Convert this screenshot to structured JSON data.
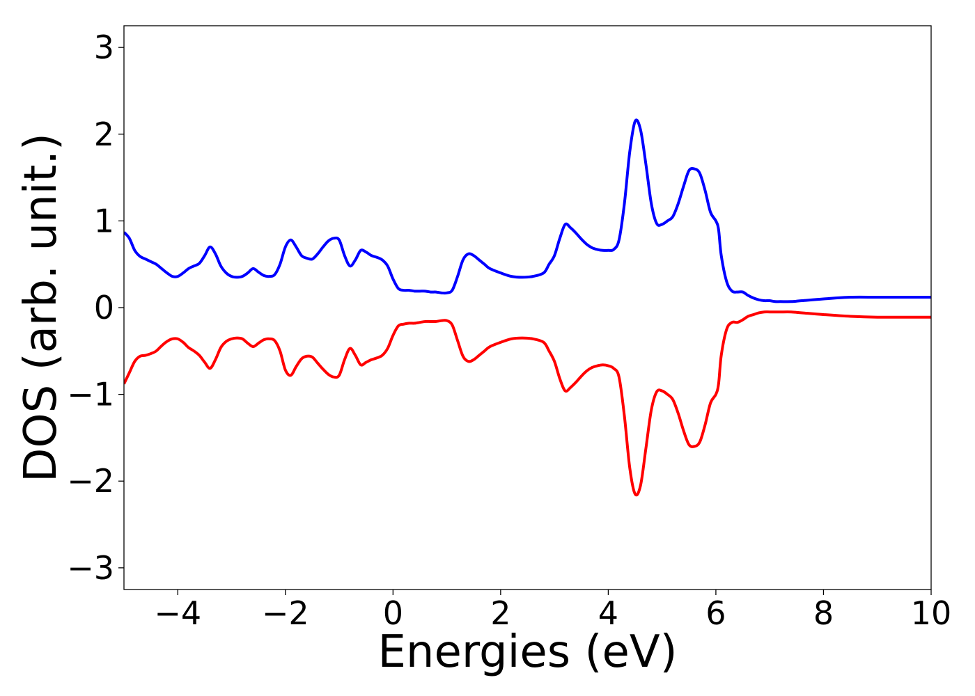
{
  "chart_data": {
    "type": "line",
    "title": "",
    "xlabel": "Energies (eV)",
    "ylabel": "DOS (arb. unit.)",
    "xlim": [
      -5,
      10
    ],
    "ylim": [
      -3.25,
      3.25
    ],
    "xticks": [
      -4,
      -2,
      0,
      2,
      4,
      6,
      8,
      10
    ],
    "yticks": [
      -3,
      -2,
      -1,
      0,
      1,
      2,
      3
    ],
    "xtick_labels": [
      "−4",
      "−2",
      "0",
      "2",
      "4",
      "6",
      "8",
      "10"
    ],
    "ytick_labels": [
      "−3",
      "−2",
      "−1",
      "0",
      "1",
      "2",
      "3"
    ],
    "grid": false,
    "legend": null,
    "series": [
      {
        "color": "#0000ff",
        "x": [
          -5.0,
          -4.9,
          -4.8,
          -4.7,
          -4.6,
          -4.5,
          -4.4,
          -4.3,
          -4.2,
          -4.1,
          -4.0,
          -3.9,
          -3.8,
          -3.7,
          -3.6,
          -3.5,
          -3.4,
          -3.3,
          -3.2,
          -3.1,
          -3.0,
          -2.9,
          -2.8,
          -2.7,
          -2.6,
          -2.5,
          -2.4,
          -2.3,
          -2.2,
          -2.1,
          -2.0,
          -1.9,
          -1.8,
          -1.7,
          -1.6,
          -1.5,
          -1.4,
          -1.3,
          -1.2,
          -1.1,
          -1.0,
          -0.9,
          -0.8,
          -0.7,
          -0.6,
          -0.5,
          -0.4,
          -0.3,
          -0.2,
          -0.1,
          0.0,
          0.1,
          0.2,
          0.3,
          0.4,
          0.5,
          0.6,
          0.7,
          0.8,
          0.9,
          1.0,
          1.1,
          1.2,
          1.3,
          1.4,
          1.5,
          1.6,
          1.7,
          1.8,
          2.0,
          2.2,
          2.4,
          2.6,
          2.8,
          2.9,
          3.0,
          3.1,
          3.2,
          3.3,
          3.4,
          3.5,
          3.6,
          3.7,
          3.8,
          3.9,
          4.0,
          4.1,
          4.2,
          4.3,
          4.4,
          4.5,
          4.6,
          4.7,
          4.8,
          4.9,
          5.0,
          5.1,
          5.2,
          5.3,
          5.4,
          5.5,
          5.6,
          5.7,
          5.8,
          5.9,
          6.0,
          6.05,
          6.1,
          6.2,
          6.3,
          6.4,
          6.5,
          6.6,
          6.7,
          6.8,
          6.9,
          7.0,
          7.1,
          7.2,
          7.4,
          7.6,
          8.0,
          8.5,
          9.0,
          9.5,
          9.8,
          10.0
        ],
        "y": [
          0.87,
          0.8,
          0.66,
          0.59,
          0.56,
          0.53,
          0.5,
          0.45,
          0.4,
          0.36,
          0.36,
          0.4,
          0.45,
          0.48,
          0.51,
          0.6,
          0.7,
          0.62,
          0.48,
          0.4,
          0.36,
          0.35,
          0.36,
          0.4,
          0.45,
          0.41,
          0.37,
          0.36,
          0.38,
          0.5,
          0.7,
          0.78,
          0.7,
          0.6,
          0.57,
          0.56,
          0.62,
          0.7,
          0.77,
          0.8,
          0.78,
          0.6,
          0.48,
          0.55,
          0.66,
          0.64,
          0.6,
          0.58,
          0.55,
          0.48,
          0.33,
          0.22,
          0.2,
          0.2,
          0.19,
          0.19,
          0.19,
          0.18,
          0.18,
          0.17,
          0.17,
          0.2,
          0.36,
          0.55,
          0.62,
          0.6,
          0.55,
          0.5,
          0.45,
          0.4,
          0.36,
          0.35,
          0.36,
          0.4,
          0.5,
          0.6,
          0.8,
          0.96,
          0.92,
          0.86,
          0.79,
          0.73,
          0.69,
          0.67,
          0.66,
          0.66,
          0.67,
          0.78,
          1.2,
          1.8,
          2.15,
          2.05,
          1.65,
          1.2,
          0.97,
          0.96,
          1.0,
          1.05,
          1.2,
          1.4,
          1.58,
          1.6,
          1.55,
          1.35,
          1.1,
          1.0,
          0.9,
          0.6,
          0.3,
          0.19,
          0.18,
          0.18,
          0.14,
          0.11,
          0.09,
          0.08,
          0.08,
          0.07,
          0.07,
          0.07,
          0.08,
          0.1,
          0.12,
          0.12,
          0.12,
          0.12,
          0.12
        ]
      },
      {
        "color": "#ff0000",
        "x": [
          -5.0,
          -4.9,
          -4.8,
          -4.7,
          -4.6,
          -4.5,
          -4.4,
          -4.3,
          -4.2,
          -4.1,
          -4.0,
          -3.9,
          -3.8,
          -3.7,
          -3.6,
          -3.5,
          -3.4,
          -3.3,
          -3.2,
          -3.1,
          -3.0,
          -2.9,
          -2.8,
          -2.7,
          -2.6,
          -2.5,
          -2.4,
          -2.3,
          -2.2,
          -2.1,
          -2.0,
          -1.9,
          -1.8,
          -1.7,
          -1.6,
          -1.5,
          -1.4,
          -1.3,
          -1.2,
          -1.1,
          -1.0,
          -0.9,
          -0.8,
          -0.7,
          -0.6,
          -0.5,
          -0.4,
          -0.3,
          -0.2,
          -0.1,
          0.0,
          0.1,
          0.2,
          0.3,
          0.4,
          0.5,
          0.6,
          0.7,
          0.8,
          0.9,
          1.0,
          1.1,
          1.2,
          1.3,
          1.4,
          1.5,
          1.6,
          1.7,
          1.8,
          2.0,
          2.2,
          2.4,
          2.6,
          2.8,
          2.9,
          3.0,
          3.1,
          3.2,
          3.3,
          3.4,
          3.5,
          3.6,
          3.7,
          3.8,
          3.9,
          4.0,
          4.1,
          4.2,
          4.3,
          4.4,
          4.5,
          4.6,
          4.7,
          4.8,
          4.9,
          5.0,
          5.1,
          5.2,
          5.3,
          5.4,
          5.5,
          5.6,
          5.7,
          5.8,
          5.9,
          6.0,
          6.05,
          6.1,
          6.2,
          6.3,
          6.4,
          6.5,
          6.6,
          6.7,
          6.8,
          6.9,
          7.0,
          7.1,
          7.2,
          7.4,
          7.6,
          8.0,
          8.5,
          9.0,
          9.5,
          9.8,
          10.0
        ],
        "y": [
          -0.88,
          -0.75,
          -0.62,
          -0.56,
          -0.55,
          -0.53,
          -0.5,
          -0.44,
          -0.39,
          -0.36,
          -0.36,
          -0.4,
          -0.46,
          -0.5,
          -0.55,
          -0.63,
          -0.7,
          -0.6,
          -0.46,
          -0.39,
          -0.36,
          -0.35,
          -0.36,
          -0.41,
          -0.45,
          -0.41,
          -0.37,
          -0.36,
          -0.38,
          -0.5,
          -0.72,
          -0.78,
          -0.68,
          -0.59,
          -0.56,
          -0.57,
          -0.64,
          -0.71,
          -0.77,
          -0.8,
          -0.78,
          -0.6,
          -0.47,
          -0.55,
          -0.66,
          -0.63,
          -0.6,
          -0.58,
          -0.55,
          -0.47,
          -0.32,
          -0.21,
          -0.19,
          -0.18,
          -0.18,
          -0.17,
          -0.16,
          -0.16,
          -0.16,
          -0.15,
          -0.15,
          -0.2,
          -0.38,
          -0.56,
          -0.62,
          -0.6,
          -0.55,
          -0.5,
          -0.45,
          -0.4,
          -0.36,
          -0.35,
          -0.36,
          -0.4,
          -0.5,
          -0.62,
          -0.82,
          -0.96,
          -0.92,
          -0.86,
          -0.79,
          -0.73,
          -0.69,
          -0.67,
          -0.66,
          -0.67,
          -0.7,
          -0.8,
          -1.25,
          -1.85,
          -2.15,
          -2.05,
          -1.62,
          -1.18,
          -0.97,
          -0.96,
          -1.0,
          -1.06,
          -1.22,
          -1.42,
          -1.58,
          -1.6,
          -1.55,
          -1.35,
          -1.1,
          -1.0,
          -0.88,
          -0.55,
          -0.25,
          -0.17,
          -0.17,
          -0.14,
          -0.1,
          -0.08,
          -0.06,
          -0.05,
          -0.05,
          -0.05,
          -0.05,
          -0.05,
          -0.06,
          -0.08,
          -0.1,
          -0.11,
          -0.11,
          -0.11,
          -0.11
        ]
      }
    ]
  }
}
